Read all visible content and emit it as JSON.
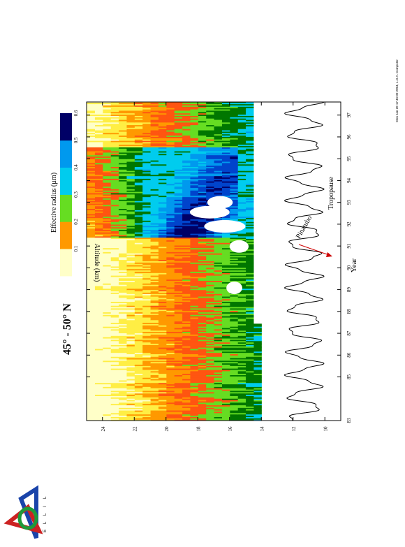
{
  "chart_data": {
    "type": "heatmap",
    "title": "45° - 50° N",
    "xlabel": "Year",
    "ylabel": "Altitude (km)",
    "xlim": [
      83,
      97.6
    ],
    "ylim": [
      9,
      25
    ],
    "x_ticks": [
      "83",
      "85",
      "86",
      "87",
      "88",
      "89",
      "90",
      "91",
      "92",
      "93",
      "94",
      "95",
      "96",
      "97"
    ],
    "x_tick_values": [
      83,
      85,
      86,
      87,
      88,
      89,
      90,
      91,
      92,
      93,
      94,
      95,
      96,
      97
    ],
    "y_ticks": [
      "10",
      "12",
      "14",
      "16",
      "18",
      "20",
      "22",
      "24"
    ],
    "y_tick_values": [
      10,
      12,
      14,
      16,
      18,
      20,
      22,
      24
    ],
    "colorbar": {
      "title": "Effective radius (µm)",
      "ticks": [
        "0.1",
        "0.2",
        "0.3",
        "0.4",
        "0.5",
        "0.6"
      ],
      "colors": [
        "#ffffc8",
        "#ff9900",
        "#66dd22",
        "#00ccee",
        "#0099ee",
        "#000066"
      ]
    },
    "extra_levels": [
      "#ffee44",
      "#ff5511",
      "#007700",
      "#0044cc"
    ],
    "annotations": [
      {
        "text": "Pinatubo",
        "color": "#cc0000"
      },
      {
        "text": "Tropopause",
        "color": "#cc00cc"
      }
    ],
    "tropopause": {
      "mean_km": 11.3,
      "amplitude_km": 1.0,
      "period_years": 1.0
    },
    "pinatubo_year": 91.45,
    "data_floor_km": [
      [
        83,
        13.8
      ],
      [
        87.3,
        13.8
      ],
      [
        87.6,
        14.3
      ],
      [
        97.6,
        14.3
      ]
    ],
    "regions": [
      {
        "from": 83,
        "to": 86,
        "level": "mixed-low"
      },
      {
        "from": 86,
        "to": 91.4,
        "level": "mixed-low"
      },
      {
        "from": 91.4,
        "to": 95.5,
        "level": "large-particles"
      },
      {
        "from": 95.5,
        "to": 97.6,
        "level": "mixed-mid"
      }
    ]
  },
  "footer": {
    "timestamp": "Mon Jan 28 17:45:00 2004, L.O.A. Computer",
    "logo_letters": [
      "L",
      "I",
      "L",
      "L",
      "E"
    ]
  }
}
